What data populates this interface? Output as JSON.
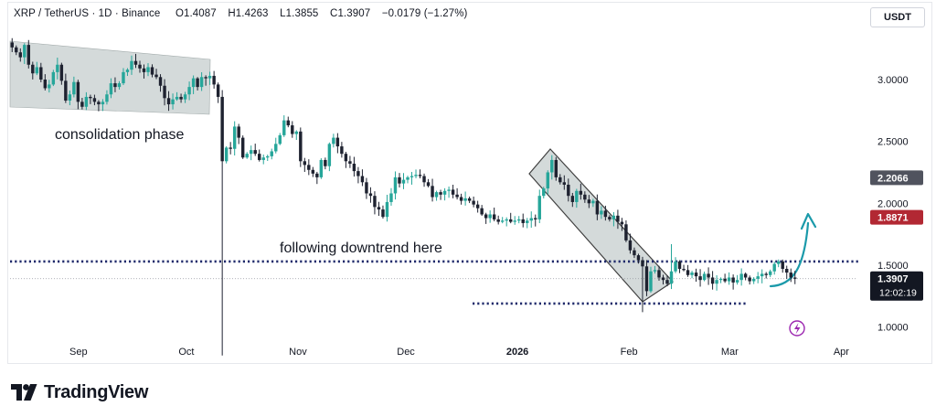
{
  "header": {
    "symbol": "XRP / TetherUS · 1D · Binance",
    "open_label": "O",
    "open": "1.4087",
    "high_label": "H",
    "high": "1.4263",
    "low_label": "L",
    "low": "1.3855",
    "close_label": "C",
    "close": "1.3907",
    "change": "−0.0179 (−1.27%)",
    "currency": "USDT"
  },
  "brand": {
    "name": "TradingView"
  },
  "colors": {
    "up": "#26a69a",
    "down": "#1e2230",
    "price_badge": "#131722",
    "gray_badge": "#50535e",
    "red_badge": "#b22833",
    "dotted_line": "#1f2a6b",
    "arrow": "#1b9aaa",
    "zone_fill": "#cdd4d4",
    "flash_icon": "#9c27b0"
  },
  "annotations": {
    "consolidation": "consolidation phase",
    "downtrend": "following downtrend here"
  },
  "price_labels": {
    "last": "1.3907",
    "countdown": "12:02:19",
    "gray": "2.2066",
    "red": "1.8871"
  },
  "chart_data": {
    "type": "candlestick",
    "title": "XRP / TetherUS · 1D · Binance",
    "xlabel": "",
    "ylabel": "",
    "ylim": [
      0.85,
      3.45
    ],
    "y_ticks": [
      "3.0000",
      "2.5000",
      "2.0000",
      "1.5000",
      "1.0000"
    ],
    "x_ticks": [
      "Sep",
      "Oct",
      "Nov",
      "Dec",
      "2026",
      "Feb",
      "Mar",
      "Apr"
    ],
    "x_range": [
      "2025-08-13",
      "2026-04-23"
    ],
    "grid": false,
    "series": [
      {
        "closes": [
          3.26,
          3.22,
          3.18,
          3.28,
          3.12,
          3.05,
          3.1,
          3.0,
          2.93,
          2.96,
          3.06,
          3.12,
          2.99,
          2.83,
          2.88,
          2.98,
          2.82,
          2.78,
          2.86,
          2.85,
          2.82,
          2.8,
          2.82,
          2.88,
          2.97,
          2.94,
          2.97,
          3.06,
          3.08,
          3.15,
          3.12,
          3.09,
          3.06,
          3.1,
          3.04,
          3.02,
          2.95,
          2.85,
          2.8,
          2.84,
          2.86,
          2.84,
          2.88,
          2.94,
          3.01,
          2.94,
          3.02,
          3.01,
          3.03,
          2.96,
          2.86,
          2.34,
          2.45,
          2.44,
          2.62,
          2.53,
          2.37,
          2.4,
          2.43,
          2.4,
          2.35,
          2.37,
          2.38,
          2.42,
          2.48,
          2.55,
          2.67,
          2.63,
          2.56,
          2.58,
          2.34,
          2.31,
          2.27,
          2.24,
          2.21,
          2.35,
          2.3,
          2.48,
          2.53,
          2.46,
          2.4,
          2.34,
          2.32,
          2.26,
          2.22,
          2.17,
          2.08,
          2.06,
          1.97,
          1.95,
          1.89,
          2.01,
          2.08,
          2.21,
          2.16,
          2.19,
          2.21,
          2.22,
          2.23,
          2.22,
          2.17,
          2.14,
          2.05,
          2.09,
          2.07,
          2.1,
          2.11,
          2.07,
          2.05,
          2.02,
          2.04,
          2.02,
          1.99,
          1.96,
          1.91,
          1.88,
          1.91,
          1.87,
          1.85,
          1.86,
          1.87,
          1.85,
          1.86,
          1.87,
          1.84,
          1.86,
          1.88,
          1.87,
          2.06,
          2.12,
          2.25,
          2.35,
          2.21,
          2.17,
          2.15,
          2.06,
          2.01,
          2.1,
          2.07,
          2.03,
          2.0,
          2.02,
          1.91,
          1.94,
          1.89,
          1.87,
          1.9,
          1.85,
          1.83,
          1.7,
          1.62,
          1.58,
          1.54,
          1.49,
          1.29,
          1.45,
          1.46,
          1.4,
          1.38,
          1.35,
          1.45,
          1.53,
          1.47,
          1.46,
          1.42,
          1.44,
          1.41,
          1.38,
          1.43,
          1.4,
          1.35,
          1.38,
          1.39,
          1.37,
          1.4,
          1.36,
          1.38,
          1.43,
          1.4,
          1.37,
          1.39,
          1.41,
          1.43,
          1.42,
          1.45,
          1.51,
          1.53,
          1.47,
          1.44,
          1.4,
          1.39
        ],
        "last": 1.3907
      }
    ],
    "annotations": [
      {
        "kind": "shaded_zone",
        "label": "consolidation phase"
      },
      {
        "kind": "shaded_channel",
        "label": ""
      },
      {
        "kind": "dotted_line",
        "price": 1.53
      },
      {
        "kind": "dotted_line",
        "price": 1.19
      },
      {
        "kind": "arrow",
        "direction": "up"
      },
      {
        "kind": "text",
        "label": "following downtrend here"
      }
    ]
  }
}
